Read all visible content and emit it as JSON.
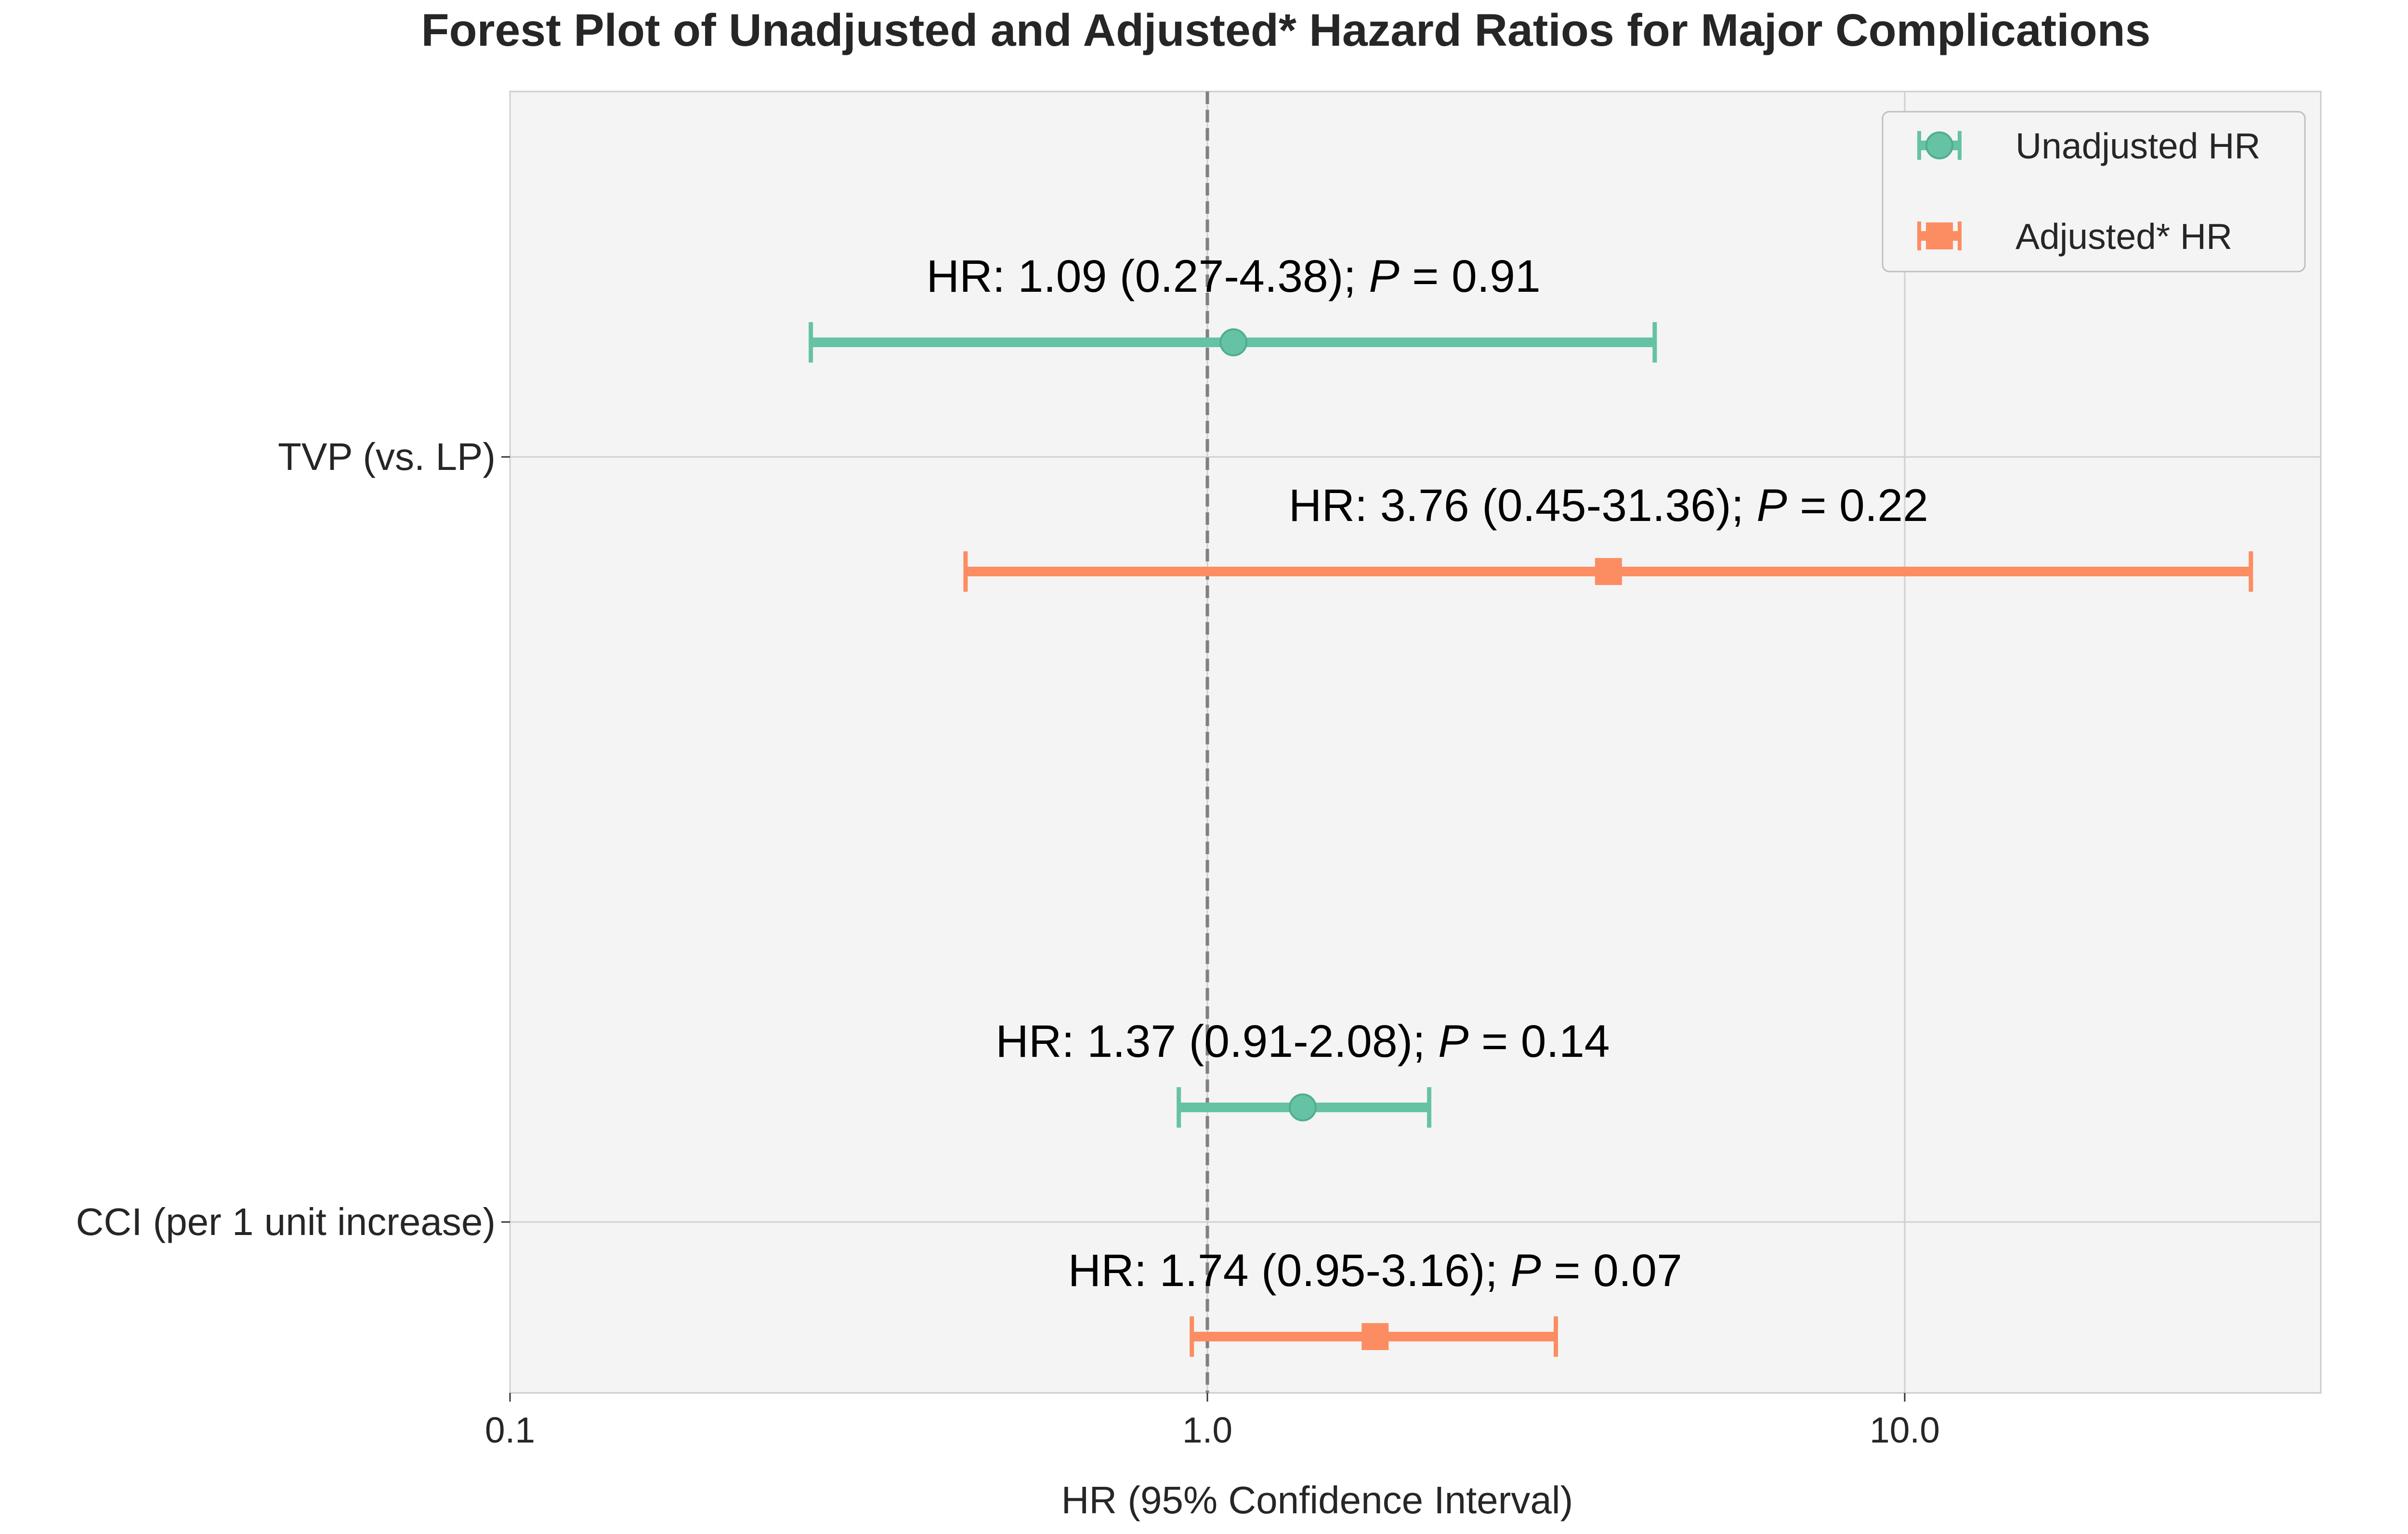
{
  "chart_data": {
    "type": "forest",
    "title": "Forest Plot of Unadjusted and Adjusted* Hazard Ratios for Major Complications",
    "xlabel": "HR (95% Confidence Interval)",
    "ylabel": "",
    "x_scale": "log",
    "xlim": [
      0.1,
      40
    ],
    "x_ticks": [
      0.1,
      1.0,
      10.0
    ],
    "x_tick_labels": [
      "0.1",
      "1.0",
      "10.0"
    ],
    "reference_line": 1.0,
    "grid": true,
    "legend_position": "top-right",
    "categories": [
      "TVP (vs. LP)",
      "CCI (per 1 unit increase)"
    ],
    "series": [
      {
        "name": "Unadjusted HR",
        "marker": "circle",
        "color": "#66c2a5",
        "points": [
          {
            "category": "TVP (vs. LP)",
            "hr": 1.09,
            "ci_low": 0.27,
            "ci_high": 4.38,
            "label_main": "HR: 1.09 (0.27-4.38); ",
            "label_p": "P",
            "label_rest": " = 0.91"
          },
          {
            "category": "CCI (per 1 unit increase)",
            "hr": 1.37,
            "ci_low": 0.91,
            "ci_high": 2.08,
            "label_main": "HR: 1.37 (0.91-2.08); ",
            "label_p": "P",
            "label_rest": " = 0.14"
          }
        ]
      },
      {
        "name": "Adjusted* HR",
        "marker": "square",
        "color": "#fc8d62",
        "points": [
          {
            "category": "TVP (vs. LP)",
            "hr": 3.76,
            "ci_low": 0.45,
            "ci_high": 31.36,
            "label_main": "HR: 3.76 (0.45-31.36); ",
            "label_p": "P",
            "label_rest": " = 0.22"
          },
          {
            "category": "CCI (per 1 unit increase)",
            "hr": 1.74,
            "ci_low": 0.95,
            "ci_high": 3.16,
            "label_main": "HR: 1.74 (0.95-3.16); ",
            "label_p": "P",
            "label_rest": " = 0.07"
          }
        ]
      }
    ]
  }
}
